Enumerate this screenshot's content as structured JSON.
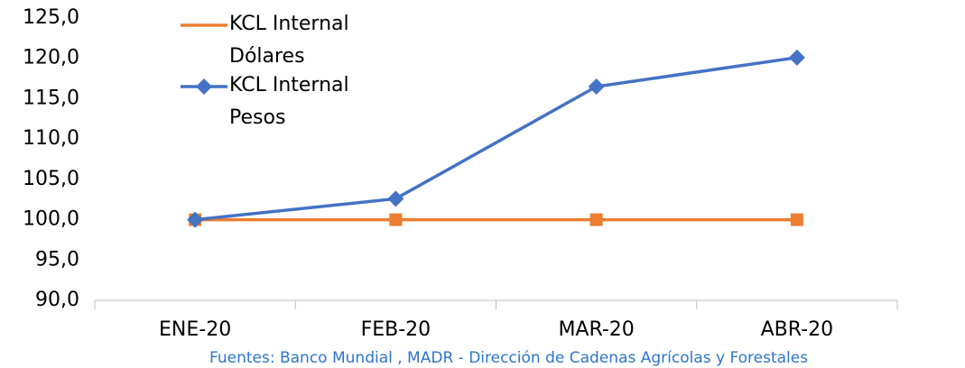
{
  "chart_data": {
    "type": "line",
    "categories": [
      "ENE-20",
      "FEB-20",
      "MAR-20",
      "ABR-20"
    ],
    "series": [
      {
        "name": "KCL Internal Dólares",
        "color": "#ED7D31",
        "marker": "square",
        "values": [
          100,
          100,
          100,
          100
        ]
      },
      {
        "name": "KCL Internal Pesos",
        "color": "#4472C4",
        "marker": "diamond",
        "values": [
          100,
          102.6,
          116.5,
          120.1
        ]
      }
    ],
    "ylim": [
      90,
      125
    ],
    "yticks": [
      {
        "value": 90,
        "label": "90,0"
      },
      {
        "value": 95,
        "label": "95,0"
      },
      {
        "value": 100,
        "label": "100,0"
      },
      {
        "value": 105,
        "label": "105,0"
      },
      {
        "value": 110,
        "label": "110,0"
      },
      {
        "value": 115,
        "label": "115,0"
      },
      {
        "value": 120,
        "label": "120,0"
      },
      {
        "value": 125,
        "label": "125,0"
      }
    ],
    "grid": false,
    "legend": "top-left",
    "source": "Fuentes: Banco Mundial , MADR - Dirección de Cadenas Agrícolas y Forestales"
  }
}
